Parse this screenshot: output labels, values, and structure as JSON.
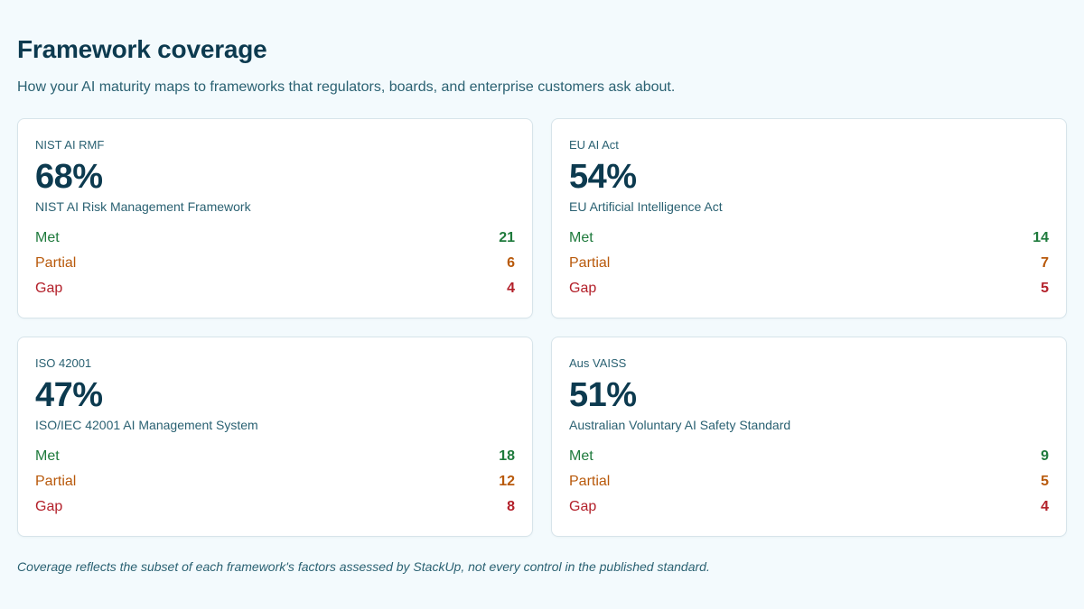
{
  "header": {
    "title": "Framework coverage",
    "subtitle": "How your AI maturity maps to frameworks that regulators, boards, and enterprise customers ask about."
  },
  "labels": {
    "met": "Met",
    "partial": "Partial",
    "gap": "Gap"
  },
  "colors": {
    "met": "#1e7a3c",
    "partial": "#b8590b",
    "gap": "#b3202a",
    "heading": "#0c3a4f",
    "background": "#f3fafd"
  },
  "frameworks": [
    {
      "name": "NIST AI RMF",
      "coverage": "68%",
      "full_name": "NIST AI Risk Management Framework",
      "met": "21",
      "partial": "6",
      "gap": "4"
    },
    {
      "name": "EU AI Act",
      "coverage": "54%",
      "full_name": "EU Artificial Intelligence Act",
      "met": "14",
      "partial": "7",
      "gap": "5"
    },
    {
      "name": "ISO 42001",
      "coverage": "47%",
      "full_name": "ISO/IEC 42001 AI Management System",
      "met": "18",
      "partial": "12",
      "gap": "8"
    },
    {
      "name": "Aus VAISS",
      "coverage": "51%",
      "full_name": "Australian Voluntary AI Safety Standard",
      "met": "9",
      "partial": "5",
      "gap": "4"
    }
  ],
  "footnote": "Coverage reflects the subset of each framework's factors assessed by StackUp, not every control in the published standard."
}
